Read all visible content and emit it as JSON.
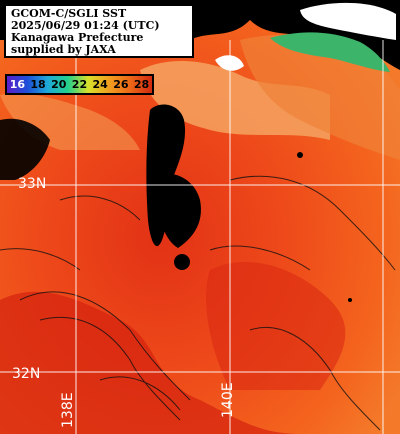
{
  "caption": {
    "line1": "GCOM-C/SGLI SST",
    "line2": "2025/06/29 01:24 (UTC)",
    "line3": "Kanagawa Prefecture",
    "line4": "supplied by JAXA"
  },
  "scale": {
    "labels": [
      "16",
      "18",
      "20",
      "22",
      "24",
      "26",
      "28"
    ]
  },
  "grid_labels": {
    "lat_33": "33N",
    "lat_32": "32N",
    "lon_138": "138E",
    "lon_140": "140E"
  },
  "colors": {
    "warm": "#f0561c",
    "hot": "#d82a14",
    "cool": "#f4a36a",
    "land": "#000000",
    "cloud": "#ffffff",
    "grid": "#ffffff"
  }
}
